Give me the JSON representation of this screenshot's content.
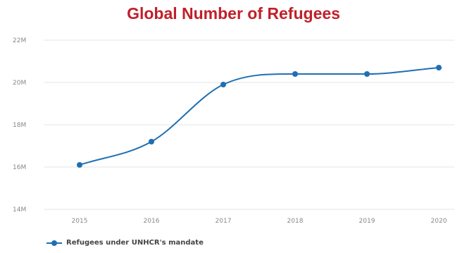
{
  "chart_data": {
    "type": "line",
    "title": "Global Number of Refugees",
    "xlabel": "",
    "ylabel": "",
    "categories": [
      "2015",
      "2016",
      "2017",
      "2018",
      "2019",
      "2020"
    ],
    "y_ticks": [
      "14M",
      "16M",
      "18M",
      "20M",
      "22M"
    ],
    "y_tick_values": [
      14,
      16,
      18,
      20,
      22
    ],
    "ylim": [
      14,
      22
    ],
    "y_unit": "M",
    "grid": true,
    "legend_position": "bottom-left",
    "series": [
      {
        "name": "Refugees under UNHCR's mandate",
        "color": "#1f6fb2",
        "values": [
          16.1,
          17.2,
          19.9,
          20.4,
          20.4,
          20.7
        ]
      }
    ]
  }
}
